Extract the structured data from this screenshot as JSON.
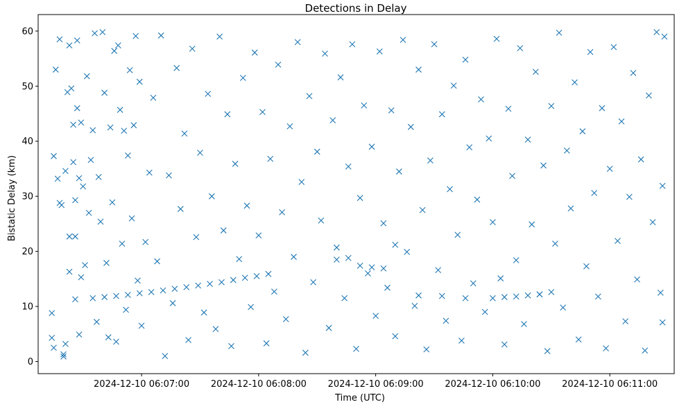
{
  "chart_data": {
    "type": "scatter",
    "title": "Detections in Delay",
    "xlabel": "Time (UTC)",
    "ylabel": "Bistatic Delay (km)",
    "x_tick_labels": [
      "2024-12-10 06:07:00",
      "2024-12-10 06:08:00",
      "2024-12-10 06:09:00",
      "2024-12-10 06:10:00",
      "2024-12-10 06:11:00"
    ],
    "x_ticks": [
      "2024-12-10T06:07:00Z",
      "2024-12-10T06:08:00Z",
      "2024-12-10T06:09:00Z",
      "2024-12-10T06:10:00Z",
      "2024-12-10T06:11:00Z"
    ],
    "y_ticks": [
      0,
      10,
      20,
      30,
      40,
      50,
      60
    ],
    "xlim": [
      "2024-12-10T06:06:07Z",
      "2024-12-10T06:11:33Z"
    ],
    "ylim": [
      -2.2,
      63
    ],
    "marker": "x",
    "grid": false,
    "series": [
      {
        "color": "#1f77b4",
        "points": [
          [
            "2024-12-10T06:06:14Z",
            4.3
          ],
          [
            "2024-12-10T06:06:14Z",
            8.8
          ],
          [
            "2024-12-10T06:06:15Z",
            2.5
          ],
          [
            "2024-12-10T06:06:15Z",
            37.3
          ],
          [
            "2024-12-10T06:06:16Z",
            53.0
          ],
          [
            "2024-12-10T06:06:17Z",
            33.2
          ],
          [
            "2024-12-10T06:06:18Z",
            58.5
          ],
          [
            "2024-12-10T06:06:18Z",
            28.8
          ],
          [
            "2024-12-10T06:06:19Z",
            28.4
          ],
          [
            "2024-12-10T06:06:20Z",
            1.3
          ],
          [
            "2024-12-10T06:06:20Z",
            0.9
          ],
          [
            "2024-12-10T06:06:21Z",
            34.6
          ],
          [
            "2024-12-10T06:06:21Z",
            3.2
          ],
          [
            "2024-12-10T06:06:22Z",
            48.9
          ],
          [
            "2024-12-10T06:06:23Z",
            57.4
          ],
          [
            "2024-12-10T06:06:23Z",
            22.7
          ],
          [
            "2024-12-10T06:06:23Z",
            16.3
          ],
          [
            "2024-12-10T06:06:24Z",
            49.6
          ],
          [
            "2024-12-10T06:06:25Z",
            43.0
          ],
          [
            "2024-12-10T06:06:25Z",
            36.2
          ],
          [
            "2024-12-10T06:06:26Z",
            29.3
          ],
          [
            "2024-12-10T06:06:26Z",
            22.7
          ],
          [
            "2024-12-10T06:06:26Z",
            11.3
          ],
          [
            "2024-12-10T06:06:27Z",
            58.3
          ],
          [
            "2024-12-10T06:06:27Z",
            46.0
          ],
          [
            "2024-12-10T06:06:28Z",
            33.3
          ],
          [
            "2024-12-10T06:06:28Z",
            4.9
          ],
          [
            "2024-12-10T06:06:29Z",
            43.4
          ],
          [
            "2024-12-10T06:06:29Z",
            15.3
          ],
          [
            "2024-12-10T06:06:30Z",
            31.8
          ],
          [
            "2024-12-10T06:06:31Z",
            17.5
          ],
          [
            "2024-12-10T06:06:32Z",
            51.8
          ],
          [
            "2024-12-10T06:06:33Z",
            27.0
          ],
          [
            "2024-12-10T06:06:34Z",
            36.6
          ],
          [
            "2024-12-10T06:06:35Z",
            42.0
          ],
          [
            "2024-12-10T06:06:36Z",
            59.6
          ],
          [
            "2024-12-10T06:06:37Z",
            7.2
          ],
          [
            "2024-12-10T06:06:38Z",
            33.5
          ],
          [
            "2024-12-10T06:06:39Z",
            25.4
          ],
          [
            "2024-12-10T06:06:40Z",
            59.8
          ],
          [
            "2024-12-10T06:06:41Z",
            48.8
          ],
          [
            "2024-12-10T06:06:42Z",
            17.9
          ],
          [
            "2024-12-10T06:06:43Z",
            4.4
          ],
          [
            "2024-12-10T06:06:44Z",
            42.5
          ],
          [
            "2024-12-10T06:06:45Z",
            28.9
          ],
          [
            "2024-12-10T06:06:46Z",
            56.4
          ],
          [
            "2024-12-10T06:06:47Z",
            3.6
          ],
          [
            "2024-12-10T06:06:48Z",
            57.4
          ],
          [
            "2024-12-10T06:06:49Z",
            45.7
          ],
          [
            "2024-12-10T06:06:50Z",
            21.4
          ],
          [
            "2024-12-10T06:06:51Z",
            41.9
          ],
          [
            "2024-12-10T06:06:52Z",
            9.4
          ],
          [
            "2024-12-10T06:06:53Z",
            37.4
          ],
          [
            "2024-12-10T06:06:54Z",
            52.9
          ],
          [
            "2024-12-10T06:06:55Z",
            26.0
          ],
          [
            "2024-12-10T06:06:56Z",
            42.9
          ],
          [
            "2024-12-10T06:06:57Z",
            59.1
          ],
          [
            "2024-12-10T06:06:58Z",
            14.7
          ],
          [
            "2024-12-10T06:06:59Z",
            50.8
          ],
          [
            "2024-12-10T06:07:00Z",
            6.5
          ],
          [
            "2024-12-10T06:07:02Z",
            21.7
          ],
          [
            "2024-12-10T06:07:04Z",
            34.3
          ],
          [
            "2024-12-10T06:07:06Z",
            47.9
          ],
          [
            "2024-12-10T06:07:08Z",
            18.2
          ],
          [
            "2024-12-10T06:07:10Z",
            59.2
          ],
          [
            "2024-12-10T06:07:12Z",
            1.0
          ],
          [
            "2024-12-10T06:07:14Z",
            33.8
          ],
          [
            "2024-12-10T06:07:16Z",
            10.6
          ],
          [
            "2024-12-10T06:07:18Z",
            53.3
          ],
          [
            "2024-12-10T06:07:20Z",
            27.7
          ],
          [
            "2024-12-10T06:07:22Z",
            41.4
          ],
          [
            "2024-12-10T06:07:24Z",
            3.9
          ],
          [
            "2024-12-10T06:07:26Z",
            56.8
          ],
          [
            "2024-12-10T06:07:28Z",
            22.6
          ],
          [
            "2024-12-10T06:07:30Z",
            37.9
          ],
          [
            "2024-12-10T06:07:32Z",
            8.9
          ],
          [
            "2024-12-10T06:07:34Z",
            48.6
          ],
          [
            "2024-12-10T06:07:36Z",
            30.0
          ],
          [
            "2024-12-10T06:07:38Z",
            5.9
          ],
          [
            "2024-12-10T06:07:40Z",
            59.0
          ],
          [
            "2024-12-10T06:07:42Z",
            23.8
          ],
          [
            "2024-12-10T06:07:44Z",
            44.9
          ],
          [
            "2024-12-10T06:07:46Z",
            2.8
          ],
          [
            "2024-12-10T06:07:48Z",
            35.9
          ],
          [
            "2024-12-10T06:07:50Z",
            18.6
          ],
          [
            "2024-12-10T06:07:52Z",
            51.5
          ],
          [
            "2024-12-10T06:07:54Z",
            28.3
          ],
          [
            "2024-12-10T06:07:56Z",
            9.9
          ],
          [
            "2024-12-10T06:07:58Z",
            56.1
          ],
          [
            "2024-12-10T06:08:00Z",
            22.9
          ],
          [
            "2024-12-10T06:08:02Z",
            45.3
          ],
          [
            "2024-12-10T06:08:04Z",
            3.3
          ],
          [
            "2024-12-10T06:08:06Z",
            36.8
          ],
          [
            "2024-12-10T06:08:08Z",
            12.7
          ],
          [
            "2024-12-10T06:08:10Z",
            53.9
          ],
          [
            "2024-12-10T06:08:12Z",
            27.1
          ],
          [
            "2024-12-10T06:08:14Z",
            7.7
          ],
          [
            "2024-12-10T06:08:16Z",
            42.7
          ],
          [
            "2024-12-10T06:08:18Z",
            19.0
          ],
          [
            "2024-12-10T06:08:20Z",
            58.0
          ],
          [
            "2024-12-10T06:08:22Z",
            32.6
          ],
          [
            "2024-12-10T06:08:24Z",
            1.6
          ],
          [
            "2024-12-10T06:08:26Z",
            48.2
          ],
          [
            "2024-12-10T06:08:28Z",
            14.4
          ],
          [
            "2024-12-10T06:08:30Z",
            38.1
          ],
          [
            "2024-12-10T06:08:32Z",
            25.6
          ],
          [
            "2024-12-10T06:08:34Z",
            55.9
          ],
          [
            "2024-12-10T06:08:36Z",
            6.1
          ],
          [
            "2024-12-10T06:08:38Z",
            43.8
          ],
          [
            "2024-12-10T06:08:40Z",
            20.7
          ],
          [
            "2024-12-10T06:08:42Z",
            51.6
          ],
          [
            "2024-12-10T06:08:44Z",
            11.5
          ],
          [
            "2024-12-10T06:08:46Z",
            35.4
          ],
          [
            "2024-12-10T06:08:48Z",
            57.6
          ],
          [
            "2024-12-10T06:08:50Z",
            2.3
          ],
          [
            "2024-12-10T06:08:52Z",
            29.7
          ],
          [
            "2024-12-10T06:08:54Z",
            46.5
          ],
          [
            "2024-12-10T06:08:56Z",
            16.0
          ],
          [
            "2024-12-10T06:08:58Z",
            39.0
          ],
          [
            "2024-12-10T06:09:00Z",
            8.3
          ],
          [
            "2024-12-10T06:09:02Z",
            56.3
          ],
          [
            "2024-12-10T06:09:04Z",
            25.1
          ],
          [
            "2024-12-10T06:09:06Z",
            13.4
          ],
          [
            "2024-12-10T06:09:08Z",
            45.6
          ],
          [
            "2024-12-10T06:09:10Z",
            4.6
          ],
          [
            "2024-12-10T06:09:12Z",
            34.5
          ],
          [
            "2024-12-10T06:09:14Z",
            58.4
          ],
          [
            "2024-12-10T06:09:16Z",
            19.9
          ],
          [
            "2024-12-10T06:09:18Z",
            42.6
          ],
          [
            "2024-12-10T06:09:20Z",
            10.1
          ],
          [
            "2024-12-10T06:09:22Z",
            53.0
          ],
          [
            "2024-12-10T06:09:24Z",
            27.5
          ],
          [
            "2024-12-10T06:09:26Z",
            2.2
          ],
          [
            "2024-12-10T06:09:28Z",
            36.5
          ],
          [
            "2024-12-10T06:09:30Z",
            57.6
          ],
          [
            "2024-12-10T06:09:32Z",
            16.6
          ],
          [
            "2024-12-10T06:09:34Z",
            44.9
          ],
          [
            "2024-12-10T06:09:36Z",
            7.4
          ],
          [
            "2024-12-10T06:09:38Z",
            31.3
          ],
          [
            "2024-12-10T06:09:40Z",
            50.1
          ],
          [
            "2024-12-10T06:09:42Z",
            23.0
          ],
          [
            "2024-12-10T06:09:44Z",
            3.8
          ],
          [
            "2024-12-10T06:09:46Z",
            54.8
          ],
          [
            "2024-12-10T06:09:48Z",
            38.9
          ],
          [
            "2024-12-10T06:09:50Z",
            14.2
          ],
          [
            "2024-12-10T06:09:52Z",
            29.4
          ],
          [
            "2024-12-10T06:09:54Z",
            47.6
          ],
          [
            "2024-12-10T06:09:56Z",
            9.0
          ],
          [
            "2024-12-10T06:09:58Z",
            40.5
          ],
          [
            "2024-12-10T06:10:00Z",
            25.3
          ],
          [
            "2024-12-10T06:10:02Z",
            58.6
          ],
          [
            "2024-12-10T06:10:04Z",
            15.1
          ],
          [
            "2024-12-10T06:10:06Z",
            3.1
          ],
          [
            "2024-12-10T06:10:08Z",
            45.9
          ],
          [
            "2024-12-10T06:10:10Z",
            33.7
          ],
          [
            "2024-12-10T06:10:12Z",
            18.4
          ],
          [
            "2024-12-10T06:10:14Z",
            56.9
          ],
          [
            "2024-12-10T06:10:16Z",
            6.8
          ],
          [
            "2024-12-10T06:10:18Z",
            40.3
          ],
          [
            "2024-12-10T06:10:20Z",
            24.9
          ],
          [
            "2024-12-10T06:10:22Z",
            52.6
          ],
          [
            "2024-12-10T06:10:24Z",
            12.2
          ],
          [
            "2024-12-10T06:10:26Z",
            35.6
          ],
          [
            "2024-12-10T06:10:28Z",
            1.9
          ],
          [
            "2024-12-10T06:10:30Z",
            46.4
          ],
          [
            "2024-12-10T06:10:32Z",
            21.4
          ],
          [
            "2024-12-10T06:10:34Z",
            59.7
          ],
          [
            "2024-12-10T06:10:36Z",
            9.8
          ],
          [
            "2024-12-10T06:10:38Z",
            38.3
          ],
          [
            "2024-12-10T06:10:40Z",
            27.8
          ],
          [
            "2024-12-10T06:10:42Z",
            50.7
          ],
          [
            "2024-12-10T06:10:44Z",
            4.0
          ],
          [
            "2024-12-10T06:10:46Z",
            41.8
          ],
          [
            "2024-12-10T06:10:48Z",
            17.3
          ],
          [
            "2024-12-10T06:10:50Z",
            56.2
          ],
          [
            "2024-12-10T06:10:52Z",
            30.6
          ],
          [
            "2024-12-10T06:10:54Z",
            11.8
          ],
          [
            "2024-12-10T06:10:56Z",
            46.0
          ],
          [
            "2024-12-10T06:10:58Z",
            2.4
          ],
          [
            "2024-12-10T06:11:00Z",
            35.0
          ],
          [
            "2024-12-10T06:11:02Z",
            57.1
          ],
          [
            "2024-12-10T06:11:04Z",
            21.9
          ],
          [
            "2024-12-10T06:11:06Z",
            43.6
          ],
          [
            "2024-12-10T06:11:08Z",
            7.3
          ],
          [
            "2024-12-10T06:11:10Z",
            29.9
          ],
          [
            "2024-12-10T06:11:12Z",
            52.4
          ],
          [
            "2024-12-10T06:11:14Z",
            14.9
          ],
          [
            "2024-12-10T06:11:16Z",
            36.7
          ],
          [
            "2024-12-10T06:11:18Z",
            2.0
          ],
          [
            "2024-12-10T06:11:20Z",
            48.3
          ],
          [
            "2024-12-10T06:11:22Z",
            25.3
          ],
          [
            "2024-12-10T06:11:24Z",
            59.8
          ],
          [
            "2024-12-10T06:11:26Z",
            12.5
          ],
          [
            "2024-12-10T06:11:27Z",
            31.9
          ],
          [
            "2024-12-10T06:11:27Z",
            7.1
          ],
          [
            "2024-12-10T06:11:28Z",
            59.0
          ],
          [
            "2024-12-10T06:06:35Z",
            11.5
          ],
          [
            "2024-12-10T06:06:41Z",
            11.7
          ],
          [
            "2024-12-10T06:06:47Z",
            11.9
          ],
          [
            "2024-12-10T06:06:53Z",
            12.1
          ],
          [
            "2024-12-10T06:06:59Z",
            12.4
          ],
          [
            "2024-12-10T06:07:05Z",
            12.6
          ],
          [
            "2024-12-10T06:07:11Z",
            12.9
          ],
          [
            "2024-12-10T06:07:17Z",
            13.2
          ],
          [
            "2024-12-10T06:07:23Z",
            13.5
          ],
          [
            "2024-12-10T06:07:29Z",
            13.8
          ],
          [
            "2024-12-10T06:07:35Z",
            14.1
          ],
          [
            "2024-12-10T06:07:41Z",
            14.4
          ],
          [
            "2024-12-10T06:07:47Z",
            14.8
          ],
          [
            "2024-12-10T06:07:53Z",
            15.2
          ],
          [
            "2024-12-10T06:07:59Z",
            15.5
          ],
          [
            "2024-12-10T06:08:05Z",
            15.9
          ],
          [
            "2024-12-10T06:08:40Z",
            18.5
          ],
          [
            "2024-12-10T06:08:46Z",
            18.8
          ],
          [
            "2024-12-10T06:08:52Z",
            17.4
          ],
          [
            "2024-12-10T06:08:58Z",
            17.1
          ],
          [
            "2024-12-10T06:09:04Z",
            16.9
          ],
          [
            "2024-12-10T06:09:10Z",
            21.2
          ],
          [
            "2024-12-10T06:09:22Z",
            12.0
          ],
          [
            "2024-12-10T06:09:34Z",
            11.9
          ],
          [
            "2024-12-10T06:09:46Z",
            11.5
          ],
          [
            "2024-12-10T06:10:00Z",
            11.5
          ],
          [
            "2024-12-10T06:10:06Z",
            11.7
          ],
          [
            "2024-12-10T06:10:12Z",
            11.8
          ],
          [
            "2024-12-10T06:10:18Z",
            12.0
          ],
          [
            "2024-12-10T06:10:24Z",
            12.2
          ],
          [
            "2024-12-10T06:10:30Z",
            12.6
          ]
        ]
      }
    ]
  }
}
